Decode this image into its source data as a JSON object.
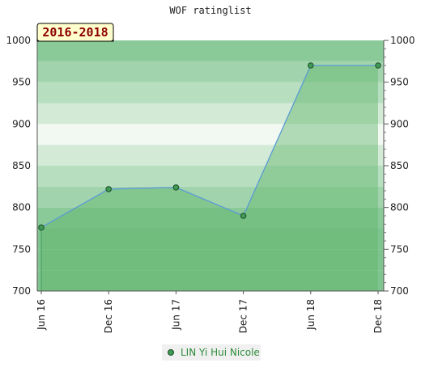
{
  "chart_data": {
    "type": "area",
    "title": "WOF ratinglist",
    "badge": "2016-2018",
    "xlabel": "",
    "ylabel": "",
    "categories": [
      "Jun 16",
      "Dec 16",
      "Jun 17",
      "Dec 17",
      "Jun 18",
      "Dec 18"
    ],
    "ylim": [
      700,
      1000
    ],
    "yticks": [
      700,
      750,
      800,
      850,
      900,
      950,
      1000
    ],
    "series": [
      {
        "name": "LIN Yi Hui Nicole",
        "values": [
          776,
          822,
          824,
          790,
          970,
          970
        ]
      }
    ],
    "legend": "bottom-center",
    "grid": false,
    "colors": {
      "line": "#5b9bd5",
      "marker": "#3f9a55",
      "fill": "#5fb56a",
      "band_dark": "#7fc48f",
      "band_light": "#f2f8f2",
      "badge_bg": "#ffffcc",
      "legend_text": "#2e8b3a"
    }
  }
}
